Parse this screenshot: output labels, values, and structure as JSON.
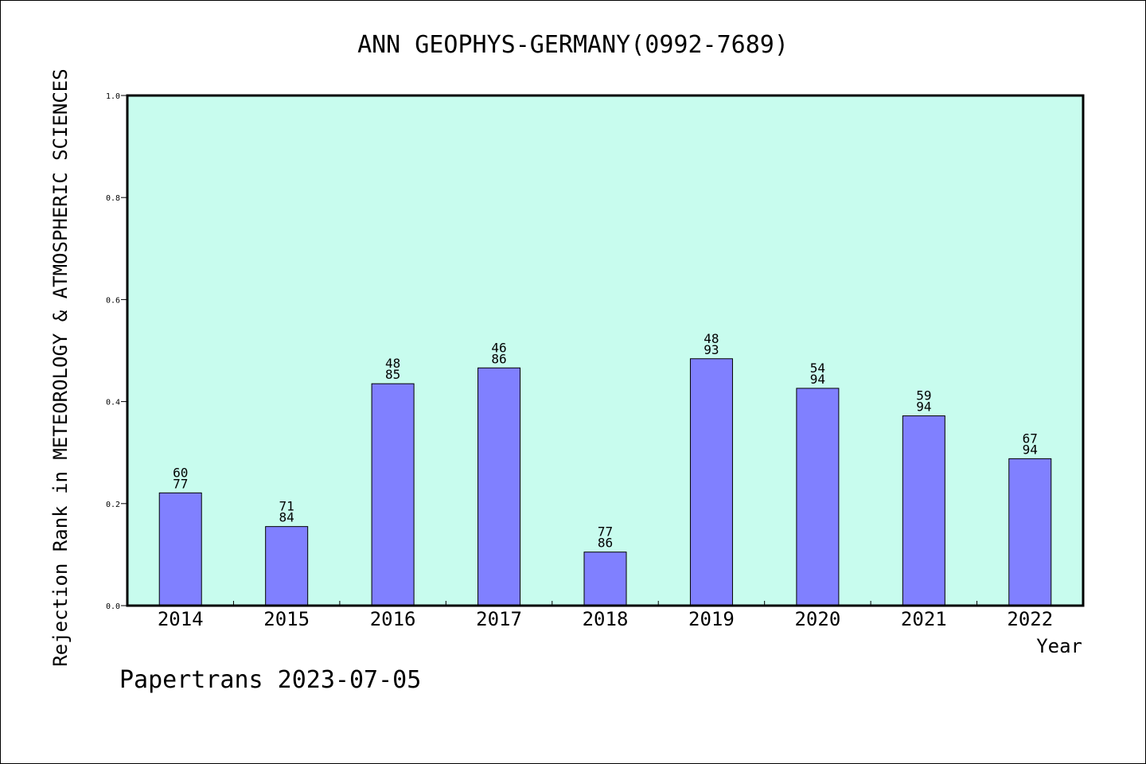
{
  "chart_data": {
    "type": "bar",
    "title": "ANN GEOPHYS-GERMANY(0992-7689)",
    "xlabel": "Year",
    "ylabel": "Rejection Rank in METEOROLOGY & ATMOSPHERIC SCIENCES",
    "ylim": [
      0,
      1.0
    ],
    "yticks": [
      "0.0",
      "0.2",
      "0.4",
      "0.6",
      "0.8",
      "1.0"
    ],
    "categories": [
      "2014",
      "2015",
      "2016",
      "2017",
      "2018",
      "2019",
      "2020",
      "2021",
      "2022"
    ],
    "values": [
      0.221,
      0.155,
      0.435,
      0.466,
      0.105,
      0.484,
      0.426,
      0.372,
      0.288
    ],
    "labels_top": [
      "60",
      "71",
      "48",
      "46",
      "77",
      "48",
      "54",
      "59",
      "67"
    ],
    "labels_bottom": [
      "77",
      "84",
      "85",
      "86",
      "86",
      "93",
      "94",
      "94",
      "94"
    ],
    "grid": false,
    "colors": {
      "plot_bg": "#c8fcee",
      "bar": "#8080ff",
      "bar_edge": "#000000"
    }
  },
  "footer": "Papertrans 2023-07-05"
}
